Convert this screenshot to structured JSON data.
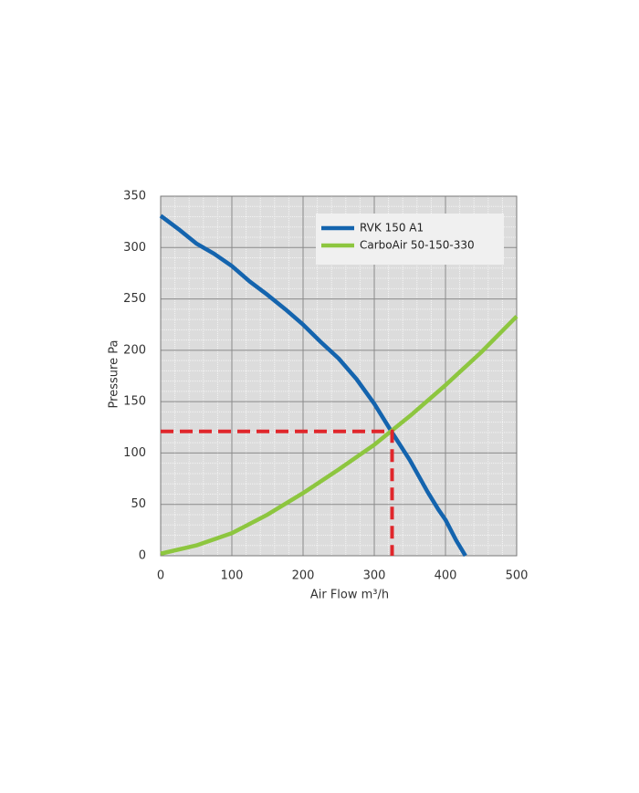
{
  "chart_data": {
    "type": "line",
    "xlabel": "Air Flow m³/h",
    "ylabel": "Pressure Pa",
    "xlim": [
      0,
      500
    ],
    "xticks": [
      0,
      100,
      200,
      300,
      400,
      500
    ],
    "ylim": [
      0,
      350
    ],
    "yticks": [
      0,
      50,
      100,
      150,
      200,
      250,
      300,
      350
    ],
    "grid": true,
    "legend": "upper right",
    "series": [
      {
        "name": "RVK 150 A1",
        "color": "#1464ae",
        "x": [
          0,
          25,
          50,
          75,
          100,
          125,
          150,
          175,
          200,
          225,
          250,
          275,
          300,
          325,
          350,
          375,
          390,
          400,
          415,
          428
        ],
        "values": [
          331,
          318,
          304,
          294,
          282,
          267,
          254,
          240,
          225,
          208,
          192,
          172,
          148,
          120,
          93,
          62,
          45,
          35,
          15,
          0
        ]
      },
      {
        "name": "CarboAir 50-150-330",
        "color": "#8dc63f",
        "x": [
          0,
          50,
          100,
          150,
          200,
          250,
          300,
          350,
          400,
          450,
          500
        ],
        "values": [
          2,
          10,
          22,
          40,
          61,
          84,
          108,
          136,
          166,
          198,
          233
        ]
      }
    ],
    "operating_point": {
      "x": 325,
      "y": 121,
      "color": "#e0262b"
    }
  }
}
